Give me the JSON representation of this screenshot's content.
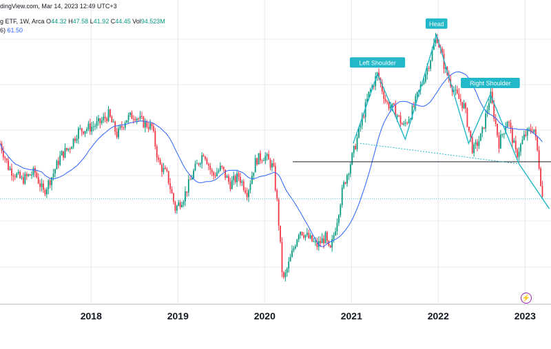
{
  "header": {
    "source": "dingView.com, Mar 14, 2023 12:49 UTC+3",
    "symbol": "g ETF, 1W, Arca",
    "ohlc": {
      "o_label": "O",
      "o": "44.32",
      "h_label": "H",
      "h": "47.58",
      "l_label": "L",
      "l": "41.92",
      "c_label": "C",
      "c": "44.45",
      "vol_label": "Vol",
      "vol": "94.523M"
    },
    "ma_label": "6)",
    "ma_value": "61.50"
  },
  "colors": {
    "up": "#089981",
    "down": "#f23645",
    "ma": "#2962ff",
    "pattern": "#22b7c9",
    "neckline": "#131722",
    "grid": "#e6e8ee",
    "axis_text": "#131722"
  },
  "icon": "lightning-icon",
  "chart_data": {
    "type": "candlestick",
    "title": "",
    "x_ticks": [
      "2018",
      "2019",
      "2020",
      "2021",
      "2022",
      "2023"
    ],
    "ylim": [
      19,
      88
    ],
    "grid": true,
    "annotations": [
      {
        "label": "Left Shoulder",
        "date": "2021.30",
        "price": 75.0
      },
      {
        "label": "Head",
        "date": "2021.98",
        "price": 84.5
      },
      {
        "label": "Right Shoulder",
        "date": "2022.60",
        "price": 70.0
      }
    ],
    "neckline_price": 53.5,
    "current_price_line": 44.45,
    "weekly_price_path": [
      [
        2016.95,
        58
      ],
      [
        2017.05,
        52
      ],
      [
        2017.2,
        49
      ],
      [
        2017.35,
        51
      ],
      [
        2017.45,
        46
      ],
      [
        2017.55,
        50
      ],
      [
        2017.65,
        55
      ],
      [
        2017.75,
        57
      ],
      [
        2017.85,
        61
      ],
      [
        2018.0,
        62
      ],
      [
        2018.1,
        63
      ],
      [
        2018.2,
        65
      ],
      [
        2018.3,
        60
      ],
      [
        2018.4,
        64
      ],
      [
        2018.5,
        65
      ],
      [
        2018.6,
        63
      ],
      [
        2018.7,
        62
      ],
      [
        2018.78,
        53
      ],
      [
        2018.88,
        50
      ],
      [
        2018.97,
        42
      ],
      [
        2019.07,
        45
      ],
      [
        2019.18,
        51
      ],
      [
        2019.3,
        56
      ],
      [
        2019.4,
        50
      ],
      [
        2019.5,
        52
      ],
      [
        2019.6,
        48
      ],
      [
        2019.7,
        50
      ],
      [
        2019.8,
        46
      ],
      [
        2019.9,
        54
      ],
      [
        2020.0,
        55
      ],
      [
        2020.1,
        52
      ],
      [
        2020.15,
        42
      ],
      [
        2020.21,
        24
      ],
      [
        2020.3,
        30
      ],
      [
        2020.4,
        37
      ],
      [
        2020.5,
        35
      ],
      [
        2020.6,
        33
      ],
      [
        2020.7,
        35
      ],
      [
        2020.75,
        31
      ],
      [
        2020.83,
        39
      ],
      [
        2020.9,
        47
      ],
      [
        2021.0,
        54
      ],
      [
        2021.1,
        62
      ],
      [
        2021.2,
        70
      ],
      [
        2021.3,
        75
      ],
      [
        2021.4,
        68
      ],
      [
        2021.5,
        66
      ],
      [
        2021.6,
        62
      ],
      [
        2021.7,
        66
      ],
      [
        2021.8,
        72
      ],
      [
        2021.9,
        78
      ],
      [
        2021.98,
        84.5
      ],
      [
        2022.08,
        76
      ],
      [
        2022.2,
        70
      ],
      [
        2022.3,
        67
      ],
      [
        2022.4,
        56
      ],
      [
        2022.5,
        60
      ],
      [
        2022.6,
        70
      ],
      [
        2022.7,
        58
      ],
      [
        2022.8,
        64
      ],
      [
        2022.9,
        55
      ],
      [
        2023.0,
        60
      ],
      [
        2023.1,
        62
      ],
      [
        2023.15,
        55
      ],
      [
        2023.2,
        45
      ]
    ]
  }
}
